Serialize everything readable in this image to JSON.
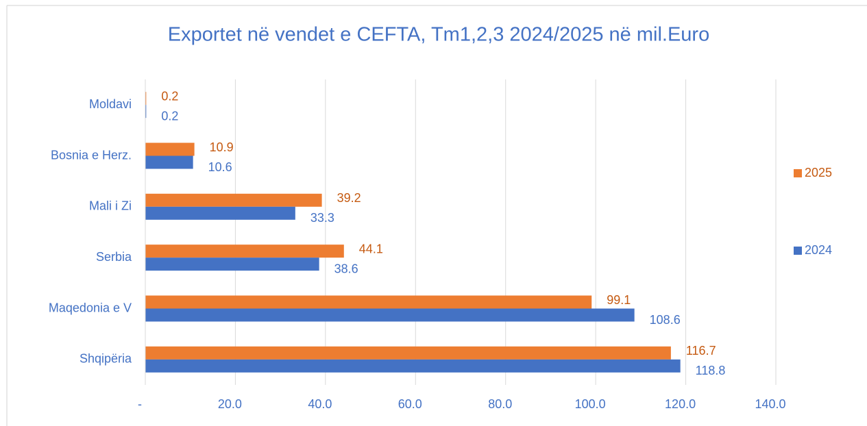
{
  "chart_data": {
    "type": "hbar",
    "title": "Exportet në vendet e CEFTA, Tm1,2,3 2024/2025 në mil.Euro",
    "categories": [
      "Moldavi",
      "Bosnia e Herz.",
      "Mali i Zi",
      "Serbia",
      "Maqedonia e V",
      "Shqipëria"
    ],
    "series": [
      {
        "name": "2025",
        "color": "#ed7d31",
        "label_color": "#c55a11",
        "values": [
          0.2,
          10.9,
          39.2,
          44.1,
          99.1,
          116.7
        ]
      },
      {
        "name": "2024",
        "color": "#4472c4",
        "label_color": "#4472c4",
        "values": [
          0.2,
          10.6,
          33.3,
          38.6,
          108.6,
          118.8
        ]
      }
    ],
    "xlim": [
      0,
      140
    ],
    "xticks": [
      {
        "value": 0,
        "label": "-"
      },
      {
        "value": 20,
        "label": "20.0"
      },
      {
        "value": 40,
        "label": "40.0"
      },
      {
        "value": 60,
        "label": "60.0"
      },
      {
        "value": 80,
        "label": "80.0"
      },
      {
        "value": 100,
        "label": "100.0"
      },
      {
        "value": 120,
        "label": "120.0"
      },
      {
        "value": 140,
        "label": "140.0"
      }
    ],
    "grid": true,
    "legend": "right"
  }
}
